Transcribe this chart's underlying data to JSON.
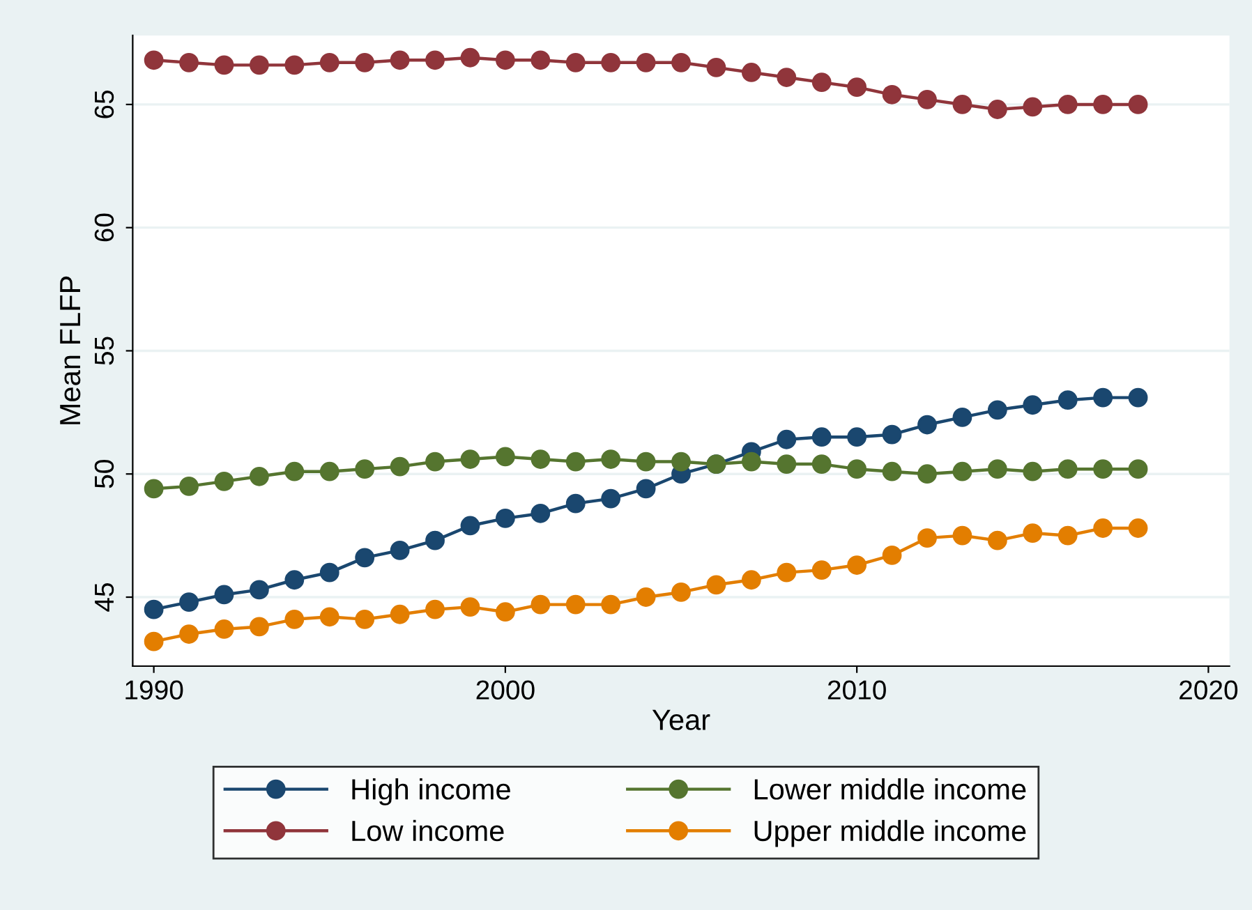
{
  "chart_data": {
    "type": "line",
    "xlabel": "Year",
    "ylabel": "Mean FLFP",
    "x": [
      1990,
      1991,
      1992,
      1993,
      1994,
      1995,
      1996,
      1997,
      1998,
      1999,
      2000,
      2001,
      2002,
      2003,
      2004,
      2005,
      2006,
      2007,
      2008,
      2009,
      2010,
      2011,
      2012,
      2013,
      2014,
      2015,
      2016,
      2017,
      2018
    ],
    "series": [
      {
        "name": "High income",
        "color": "#1a476f",
        "values": [
          44.5,
          44.8,
          45.1,
          45.3,
          45.7,
          46.0,
          46.6,
          46.9,
          47.3,
          47.9,
          48.2,
          48.4,
          48.8,
          49.0,
          49.4,
          50.0,
          50.4,
          50.9,
          51.4,
          51.5,
          51.5,
          51.6,
          52.0,
          52.3,
          52.6,
          52.8,
          53.0,
          53.1,
          53.1
        ]
      },
      {
        "name": "Low income",
        "color": "#90353b",
        "values": [
          66.8,
          66.7,
          66.6,
          66.6,
          66.6,
          66.7,
          66.7,
          66.8,
          66.8,
          66.9,
          66.8,
          66.8,
          66.7,
          66.7,
          66.7,
          66.7,
          66.5,
          66.3,
          66.1,
          65.9,
          65.7,
          65.4,
          65.2,
          65.0,
          64.8,
          64.9,
          65.0,
          65.0,
          65.0
        ]
      },
      {
        "name": "Lower middle income",
        "color": "#55752f",
        "values": [
          49.4,
          49.5,
          49.7,
          49.9,
          50.1,
          50.1,
          50.2,
          50.3,
          50.5,
          50.6,
          50.7,
          50.6,
          50.5,
          50.6,
          50.5,
          50.5,
          50.4,
          50.5,
          50.4,
          50.4,
          50.2,
          50.1,
          50.0,
          50.1,
          50.2,
          50.1,
          50.2,
          50.2,
          50.2
        ]
      },
      {
        "name": "Upper middle income",
        "color": "#e37e00",
        "values": [
          43.2,
          43.5,
          43.7,
          43.8,
          44.1,
          44.2,
          44.1,
          44.3,
          44.5,
          44.6,
          44.4,
          44.7,
          44.7,
          44.7,
          45.0,
          45.2,
          45.5,
          45.7,
          46.0,
          46.1,
          46.3,
          46.7,
          47.4,
          47.5,
          47.3,
          47.6,
          47.5,
          47.8,
          47.8
        ]
      }
    ],
    "xlim": [
      1989.4,
      2020.6
    ],
    "xticks": [
      1990,
      2000,
      2010,
      2020
    ],
    "ylim": [
      42.2,
      67.8
    ],
    "yticks": [
      45,
      50,
      55,
      60,
      65
    ],
    "grid": "y",
    "legend": "bottom",
    "marker": "circle",
    "line_style": "solid"
  }
}
